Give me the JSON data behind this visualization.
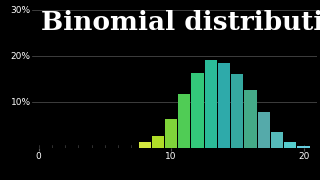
{
  "title": "Binomial distribution",
  "background_color": "#000000",
  "text_color": "#ffffff",
  "title_fontsize": 19,
  "xlim": [
    -0.5,
    21
  ],
  "ylim": [
    0,
    0.31
  ],
  "xticks": [
    0,
    10,
    20
  ],
  "yticks": [
    0.0,
    0.1,
    0.2,
    0.3
  ],
  "grid_color": "#555555",
  "bar_x": [
    8,
    9,
    10,
    11,
    12,
    13,
    14,
    15,
    16,
    17,
    18,
    19,
    20
  ],
  "bar_heights": [
    0.013,
    0.025,
    0.062,
    0.117,
    0.163,
    0.192,
    0.184,
    0.161,
    0.125,
    0.078,
    0.034,
    0.013,
    0.003
  ],
  "bar_colors": [
    "#d4e840",
    "#b0dd28",
    "#7fd43a",
    "#50cc55",
    "#33c87a",
    "#2bbb99",
    "#2eaaaa",
    "#35a8a0",
    "#44aa88",
    "#55aaaa",
    "#55bbbb",
    "#55cccc",
    "#66ccdd"
  ]
}
